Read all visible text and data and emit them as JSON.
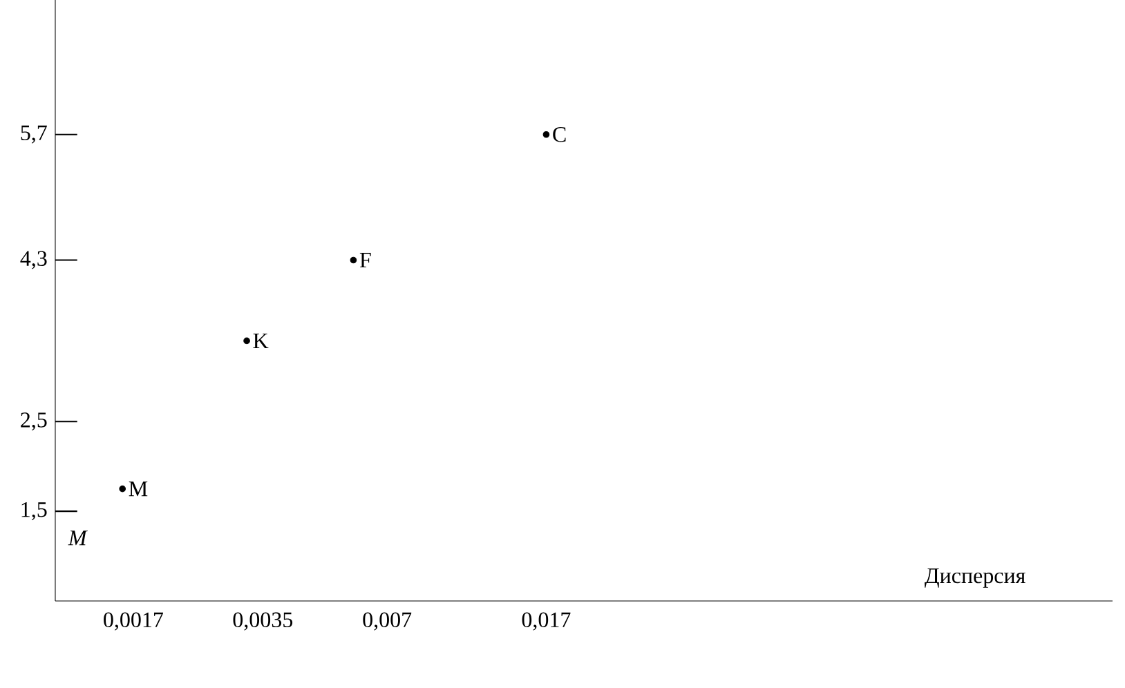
{
  "chart_data": {
    "type": "scatter",
    "xlabel": "Дисперсия",
    "log": "x",
    "xlim": [
      0.0011,
      0.4
    ],
    "ylim": [
      0.5,
      7.2
    ],
    "xticks": [
      {
        "value": 0.0017,
        "label": "0,0017"
      },
      {
        "value": 0.0035,
        "label": "0,0035"
      },
      {
        "value": 0.007,
        "label": "0,007"
      },
      {
        "value": 0.017,
        "label": "0,017"
      }
    ],
    "yticks": [
      {
        "value": 1.5,
        "label": "1,5"
      },
      {
        "value": 2.5,
        "label": "2,5"
      },
      {
        "value": 4.3,
        "label": "4,3"
      },
      {
        "value": 5.7,
        "label": "5,7"
      }
    ],
    "annotations": [
      "M"
    ],
    "series": [
      {
        "name": "C",
        "color": "#000000",
        "x": [
          0.017
        ],
        "values": [
          5.7
        ]
      },
      {
        "name": "F",
        "color": "#000000",
        "x": [
          0.0058
        ],
        "values": [
          4.3
        ]
      },
      {
        "name": "K",
        "color": "#000000",
        "x": [
          0.0032
        ],
        "values": [
          3.4
        ]
      },
      {
        "name": "M",
        "color": "#000000",
        "x": [
          0.0016
        ],
        "values": [
          1.75
        ]
      }
    ]
  }
}
